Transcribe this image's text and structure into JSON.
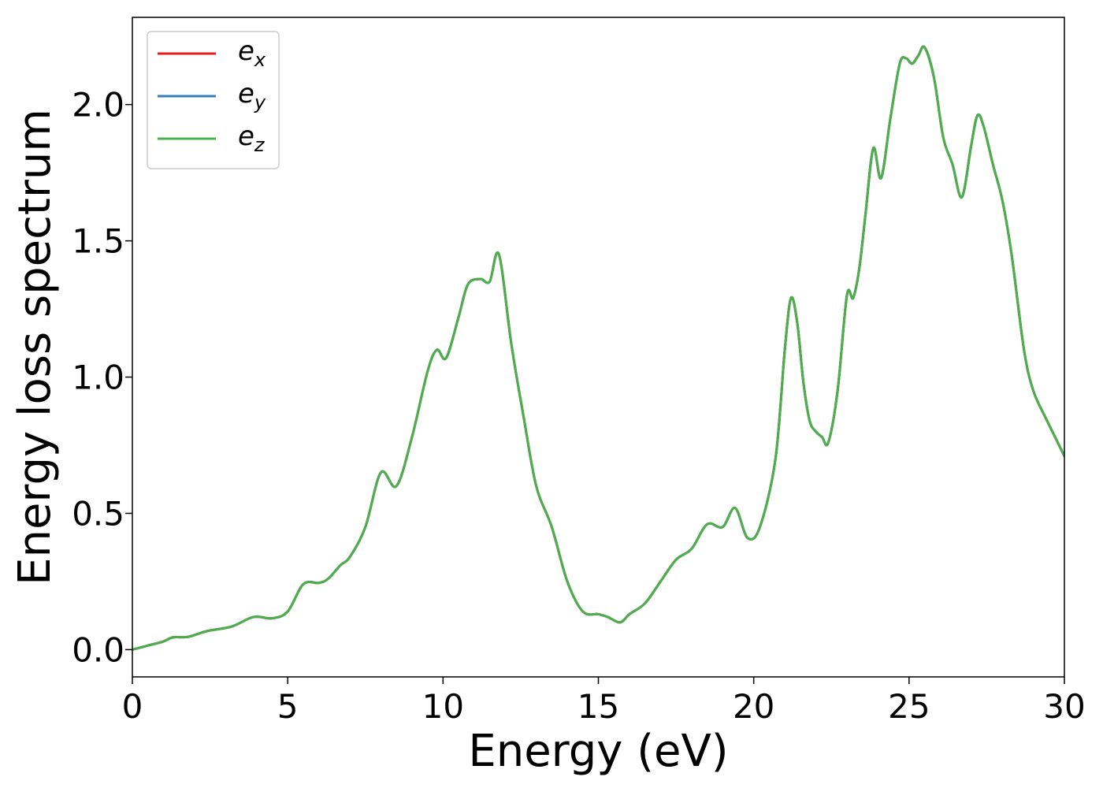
{
  "chart_data": {
    "type": "line",
    "title": "",
    "xlabel": "Energy (eV)",
    "ylabel": "Energy loss spectrum",
    "xlim": [
      0,
      30
    ],
    "ylim": [
      -0.1,
      2.32
    ],
    "xticks": [
      0,
      5,
      10,
      15,
      20,
      25,
      30
    ],
    "xtick_labels": [
      "0",
      "5",
      "10",
      "15",
      "20",
      "25",
      "30"
    ],
    "yticks": [
      0.0,
      0.5,
      1.0,
      1.5,
      2.0
    ],
    "ytick_labels": [
      "0.0",
      "0.5",
      "1.0",
      "1.5",
      "2.0"
    ],
    "grid": false,
    "legend_position": "top-left",
    "x": [
      0,
      0.5,
      1.0,
      1.3,
      1.8,
      2.4,
      3.2,
      3.9,
      4.5,
      5.0,
      5.5,
      6.0,
      6.3,
      6.7,
      7.0,
      7.5,
      8.0,
      8.5,
      9.0,
      9.5,
      9.8,
      10.1,
      10.5,
      10.8,
      11.2,
      11.5,
      11.8,
      12.2,
      12.6,
      13.0,
      13.5,
      14.0,
      14.5,
      15.0,
      15.3,
      15.7,
      16.0,
      16.5,
      17.0,
      17.5,
      18.0,
      18.5,
      19.0,
      19.4,
      19.8,
      20.2,
      20.7,
      21.0,
      21.2,
      21.4,
      21.6,
      21.8,
      22.0,
      22.2,
      22.4,
      22.7,
      23.0,
      23.2,
      23.4,
      23.6,
      23.85,
      24.1,
      24.4,
      24.7,
      24.9,
      25.1,
      25.3,
      25.5,
      25.8,
      26.1,
      26.4,
      26.7,
      27.0,
      27.2,
      27.4,
      27.7,
      28.0,
      28.3,
      28.7,
      29.0,
      29.4,
      29.7,
      30.0
    ],
    "series": [
      {
        "name": "e_x",
        "color": "#e41a1c",
        "values": [
          0.0,
          0.015,
          0.03,
          0.045,
          0.047,
          0.068,
          0.085,
          0.12,
          0.115,
          0.14,
          0.24,
          0.245,
          0.26,
          0.31,
          0.34,
          0.45,
          0.65,
          0.6,
          0.78,
          1.02,
          1.1,
          1.07,
          1.22,
          1.34,
          1.36,
          1.35,
          1.45,
          1.12,
          0.85,
          0.6,
          0.45,
          0.25,
          0.14,
          0.13,
          0.12,
          0.1,
          0.13,
          0.17,
          0.25,
          0.33,
          0.37,
          0.46,
          0.45,
          0.52,
          0.41,
          0.45,
          0.7,
          1.1,
          1.29,
          1.2,
          0.98,
          0.84,
          0.8,
          0.78,
          0.76,
          0.95,
          1.3,
          1.29,
          1.4,
          1.6,
          1.84,
          1.73,
          1.95,
          2.15,
          2.17,
          2.15,
          2.18,
          2.21,
          2.1,
          1.88,
          1.78,
          1.66,
          1.85,
          1.96,
          1.92,
          1.78,
          1.65,
          1.45,
          1.1,
          0.95,
          0.85,
          0.78,
          0.71
        ]
      },
      {
        "name": "e_y",
        "color": "#377eb8",
        "values": [
          0.0,
          0.015,
          0.03,
          0.045,
          0.047,
          0.068,
          0.085,
          0.12,
          0.115,
          0.14,
          0.24,
          0.245,
          0.26,
          0.31,
          0.34,
          0.45,
          0.65,
          0.6,
          0.78,
          1.02,
          1.1,
          1.07,
          1.22,
          1.34,
          1.36,
          1.35,
          1.45,
          1.12,
          0.85,
          0.6,
          0.45,
          0.25,
          0.14,
          0.13,
          0.12,
          0.1,
          0.13,
          0.17,
          0.25,
          0.33,
          0.37,
          0.46,
          0.45,
          0.52,
          0.41,
          0.45,
          0.7,
          1.1,
          1.29,
          1.2,
          0.98,
          0.84,
          0.8,
          0.78,
          0.76,
          0.95,
          1.3,
          1.29,
          1.4,
          1.6,
          1.84,
          1.73,
          1.95,
          2.15,
          2.17,
          2.15,
          2.18,
          2.21,
          2.1,
          1.88,
          1.78,
          1.66,
          1.85,
          1.96,
          1.92,
          1.78,
          1.65,
          1.45,
          1.1,
          0.95,
          0.85,
          0.78,
          0.71
        ]
      },
      {
        "name": "e_z",
        "color": "#4daf4a",
        "values": [
          0.0,
          0.015,
          0.03,
          0.045,
          0.047,
          0.068,
          0.085,
          0.12,
          0.115,
          0.14,
          0.24,
          0.245,
          0.26,
          0.31,
          0.34,
          0.45,
          0.65,
          0.6,
          0.78,
          1.02,
          1.1,
          1.07,
          1.22,
          1.34,
          1.36,
          1.35,
          1.45,
          1.12,
          0.85,
          0.6,
          0.45,
          0.25,
          0.14,
          0.13,
          0.12,
          0.1,
          0.13,
          0.17,
          0.25,
          0.33,
          0.37,
          0.46,
          0.45,
          0.52,
          0.41,
          0.45,
          0.7,
          1.1,
          1.29,
          1.2,
          0.98,
          0.84,
          0.8,
          0.78,
          0.76,
          0.95,
          1.3,
          1.29,
          1.4,
          1.6,
          1.84,
          1.73,
          1.95,
          2.15,
          2.17,
          2.15,
          2.18,
          2.21,
          2.1,
          1.88,
          1.78,
          1.66,
          1.85,
          1.96,
          1.92,
          1.78,
          1.65,
          1.45,
          1.1,
          0.95,
          0.85,
          0.78,
          0.71
        ]
      }
    ],
    "legend": [
      {
        "base": "e",
        "sub": "x",
        "color": "#e41a1c"
      },
      {
        "base": "e",
        "sub": "y",
        "color": "#377eb8"
      },
      {
        "base": "e",
        "sub": "z",
        "color": "#4daf4a"
      }
    ]
  }
}
